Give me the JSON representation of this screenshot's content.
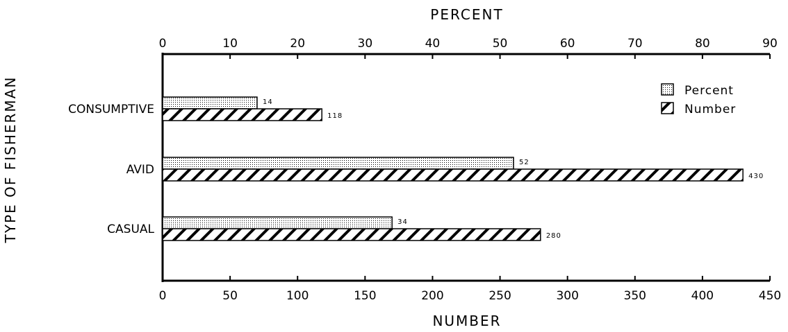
{
  "chart_data": {
    "type": "bar",
    "orientation": "horizontal",
    "categories": [
      "CONSUMPTIVE",
      "AVID",
      "CASUAL"
    ],
    "series": [
      {
        "name": "Percent",
        "axis": "top",
        "values": [
          14,
          52,
          34
        ],
        "pattern": "dotted"
      },
      {
        "name": "Number",
        "axis": "bottom",
        "values": [
          118,
          430,
          280
        ],
        "pattern": "hatched"
      }
    ],
    "top_axis": {
      "title": "PERCENT",
      "range": [
        0,
        90
      ],
      "ticks": [
        0,
        10,
        20,
        30,
        40,
        50,
        60,
        70,
        80,
        90
      ]
    },
    "bottom_axis": {
      "title": "NUMBER",
      "range": [
        0,
        450
      ],
      "ticks": [
        0,
        50,
        100,
        150,
        200,
        250,
        300,
        350,
        400,
        450
      ]
    },
    "ylabel": "TYPE OF FISHERMAN",
    "legend": {
      "placement": "top-right"
    },
    "grid": false
  }
}
